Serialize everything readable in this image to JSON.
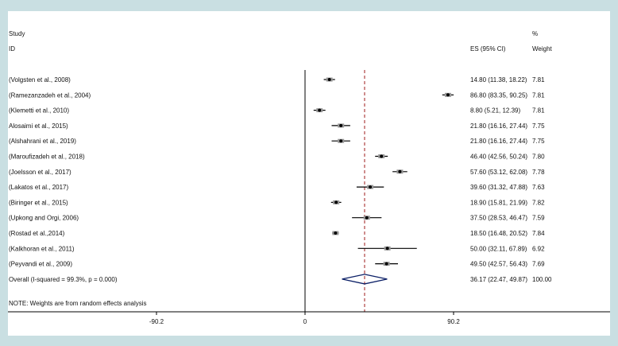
{
  "colors": {
    "background": "#c9dfe2",
    "panel": "#ffffff",
    "line": "#000000",
    "marker_box": "#999999",
    "overall_diamond": "#0b1f66",
    "overall_line": "#a01d1d"
  },
  "header": {
    "study": "Study",
    "id": "ID",
    "es": "ES (95% CI)",
    "pct": "%",
    "weight": "Weight"
  },
  "note": "NOTE: Weights are from random effects analysis",
  "chart_data": {
    "type": "forest",
    "x_ticks": [
      {
        "value": -90.2,
        "label": "-90.2"
      },
      {
        "value": 0,
        "label": "0"
      },
      {
        "value": 90.2,
        "label": "90.2"
      }
    ],
    "xlim": [
      -180.4,
      180.4
    ],
    "studies": [
      {
        "name": "(Volgsten et al., 2008)",
        "es": 14.8,
        "lo": 11.38,
        "hi": 18.22,
        "ci_text": "14.80 (11.38, 18.22)",
        "weight": "7.81"
      },
      {
        "name": "(Ramezanzadeh et al., 2004)",
        "es": 86.8,
        "lo": 83.35,
        "hi": 90.25,
        "ci_text": "86.80 (83.35, 90.25)",
        "weight": "7.81"
      },
      {
        "name": "(Klemetti et al., 2010)",
        "es": 8.8,
        "lo": 5.21,
        "hi": 12.39,
        "ci_text": "8.80 (5.21, 12.39)",
        "weight": "7.81"
      },
      {
        "name": "Alosaimi et al., 2015)",
        "es": 21.8,
        "lo": 16.16,
        "hi": 27.44,
        "ci_text": "21.80 (16.16, 27.44)",
        "weight": "7.75"
      },
      {
        "name": "(Alshahrani et al., 2019)",
        "es": 21.8,
        "lo": 16.16,
        "hi": 27.44,
        "ci_text": "21.80 (16.16, 27.44)",
        "weight": "7.75"
      },
      {
        "name": "(Maroufizadeh et al., 2018)",
        "es": 46.4,
        "lo": 42.56,
        "hi": 50.24,
        "ci_text": "46.40 (42.56, 50.24)",
        "weight": "7.80"
      },
      {
        "name": "(Joelsson et al., 2017)",
        "es": 57.6,
        "lo": 53.12,
        "hi": 62.08,
        "ci_text": "57.60 (53.12, 62.08)",
        "weight": "7.78"
      },
      {
        "name": "(Lakatos et al., 2017)",
        "es": 39.6,
        "lo": 31.32,
        "hi": 47.88,
        "ci_text": "39.60 (31.32, 47.88)",
        "weight": "7.63"
      },
      {
        "name": "(Biringer et al., 2015)",
        "es": 18.9,
        "lo": 15.81,
        "hi": 21.99,
        "ci_text": "18.90 (15.81, 21.99)",
        "weight": "7.82"
      },
      {
        "name": "(Upkong and Orgi, 2006)",
        "es": 37.5,
        "lo": 28.53,
        "hi": 46.47,
        "ci_text": "37.50 (28.53, 46.47)",
        "weight": "7.59"
      },
      {
        "name": "(Rostad et al.,2014)",
        "es": 18.5,
        "lo": 16.48,
        "hi": 20.52,
        "ci_text": "18.50 (16.48, 20.52)",
        "weight": "7.84"
      },
      {
        "name": "(Kalkhoran et al., 2011)",
        "es": 50.0,
        "lo": 32.11,
        "hi": 67.89,
        "ci_text": "50.00 (32.11, 67.89)",
        "weight": "6.92"
      },
      {
        "name": "(Peyvandi et al., 2009)",
        "es": 49.5,
        "lo": 42.57,
        "hi": 56.43,
        "ci_text": "49.50 (42.57, 56.43)",
        "weight": "7.69"
      }
    ],
    "overall": {
      "label": "Overall  (I-squared = 99.3%, p = 0.000)",
      "es": 36.17,
      "lo": 22.47,
      "hi": 49.87,
      "ci_text": "36.17 (22.47, 49.87)",
      "weight": "100.00"
    }
  }
}
